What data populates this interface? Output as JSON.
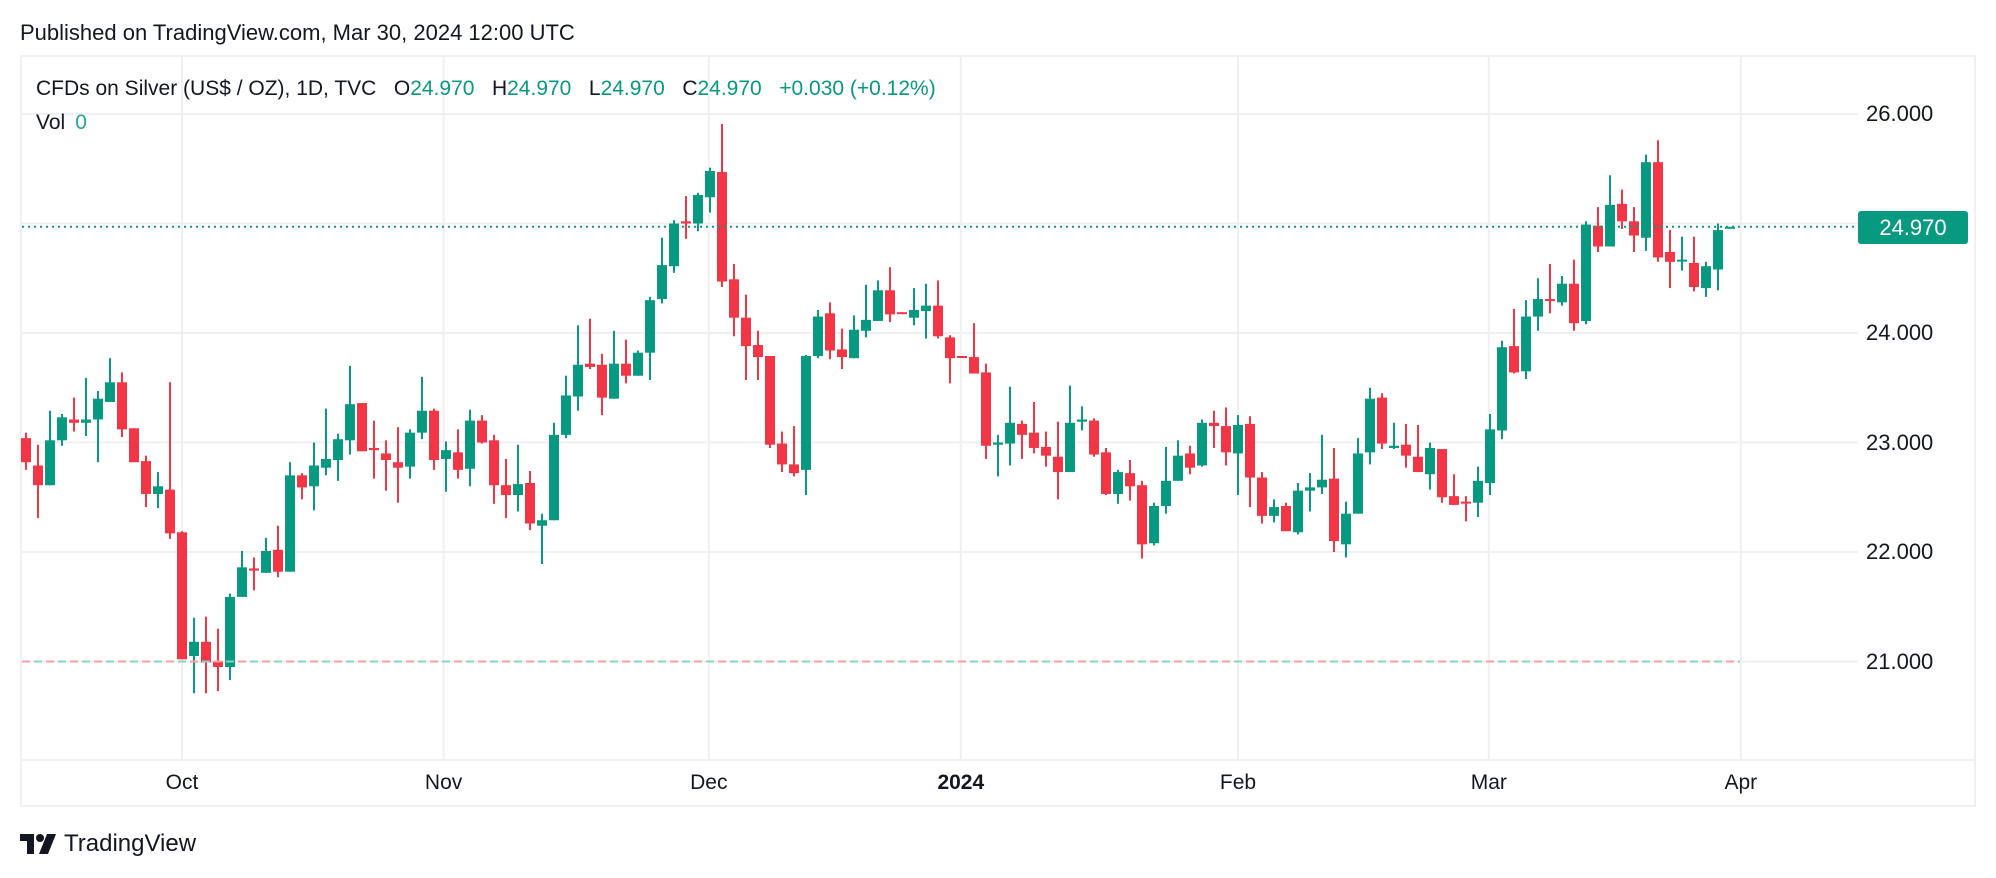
{
  "header": {
    "published": "Published on TradingView.com, Mar 30, 2024 12:00 UTC"
  },
  "legend": {
    "symbol": "CFDs on Silver (US$ / OZ), 1D, TVC",
    "open_label": "O",
    "open": "24.970",
    "high_label": "H",
    "high": "24.970",
    "low_label": "L",
    "low": "24.970",
    "close_label": "C",
    "close": "24.970",
    "change": "+0.030",
    "change_pct": "(+0.12%)",
    "vol_label": "Vol",
    "vol": "0"
  },
  "footer": {
    "brand": "TradingView"
  },
  "colors": {
    "up": "#089981",
    "down": "#F23645",
    "grid": "#f0f0f3"
  },
  "chart_data": {
    "type": "candlestick",
    "price_axis_ticks": [
      "26.000",
      "25.000",
      "24.000",
      "23.000",
      "22.000",
      "21.000"
    ],
    "visible_price_labels": [
      "26.000",
      "24.000",
      "23.000",
      "22.000",
      "21.000"
    ],
    "ylim": [
      20.35,
      26.25
    ],
    "time_axis_ticks": [
      {
        "label": "Oct",
        "index": 13.0,
        "bold": false
      },
      {
        "label": "Nov",
        "index": 34.8,
        "bold": false
      },
      {
        "label": "Dec",
        "index": 56.9,
        "bold": false
      },
      {
        "label": "2024",
        "index": 77.9,
        "bold": true
      },
      {
        "label": "Feb",
        "index": 101.0,
        "bold": false
      },
      {
        "label": "Mar",
        "index": 121.9,
        "bold": false
      },
      {
        "label": "Apr",
        "index": 142.9,
        "bold": false
      }
    ],
    "last_price": "24.970",
    "last_price_value": 24.97,
    "dashed_line_value": 21.0,
    "candles_ohlc": [
      [
        23.04,
        23.09,
        22.75,
        22.82
      ],
      [
        22.79,
        22.98,
        22.31,
        22.61
      ],
      [
        22.61,
        23.29,
        22.61,
        23.02
      ],
      [
        23.02,
        23.26,
        22.97,
        23.23
      ],
      [
        23.21,
        23.41,
        23.1,
        23.18
      ],
      [
        23.18,
        23.59,
        23.06,
        23.21
      ],
      [
        23.21,
        23.47,
        22.82,
        23.4
      ],
      [
        23.37,
        23.77,
        23.37,
        23.55
      ],
      [
        23.55,
        23.64,
        23.05,
        23.12
      ],
      [
        23.13,
        23.13,
        22.82,
        22.82
      ],
      [
        22.83,
        22.88,
        22.41,
        22.53
      ],
      [
        22.53,
        22.73,
        22.4,
        22.6
      ],
      [
        22.57,
        23.55,
        22.12,
        22.17
      ],
      [
        22.18,
        22.19,
        21.02,
        21.02
      ],
      [
        21.05,
        21.4,
        20.71,
        21.18
      ],
      [
        21.18,
        21.41,
        20.71,
        20.99
      ],
      [
        21.0,
        21.3,
        20.73,
        20.95
      ],
      [
        20.95,
        21.62,
        20.83,
        21.59
      ],
      [
        21.59,
        22.01,
        21.59,
        21.86
      ],
      [
        21.85,
        21.95,
        21.65,
        21.83
      ],
      [
        21.81,
        22.13,
        21.81,
        22.01
      ],
      [
        22.02,
        22.24,
        21.77,
        21.82
      ],
      [
        21.82,
        22.82,
        21.82,
        22.7
      ],
      [
        22.7,
        22.72,
        22.48,
        22.59
      ],
      [
        22.6,
        23.0,
        22.38,
        22.79
      ],
      [
        22.77,
        23.31,
        22.7,
        22.85
      ],
      [
        22.84,
        23.08,
        22.65,
        23.03
      ],
      [
        23.02,
        23.7,
        22.89,
        23.35
      ],
      [
        23.36,
        23.36,
        22.92,
        22.92
      ],
      [
        22.95,
        23.2,
        22.67,
        22.93
      ],
      [
        22.9,
        23.02,
        22.56,
        22.84
      ],
      [
        22.82,
        23.14,
        22.45,
        22.77
      ],
      [
        22.78,
        23.12,
        22.67,
        23.09
      ],
      [
        23.09,
        23.6,
        23.03,
        23.29
      ],
      [
        23.29,
        23.31,
        22.75,
        22.84
      ],
      [
        22.85,
        23.01,
        22.55,
        22.93
      ],
      [
        22.91,
        23.12,
        22.67,
        22.75
      ],
      [
        22.76,
        23.3,
        22.6,
        23.2
      ],
      [
        23.2,
        23.25,
        22.99,
        23.0
      ],
      [
        23.02,
        23.07,
        22.44,
        22.61
      ],
      [
        22.61,
        22.85,
        22.31,
        22.52
      ],
      [
        22.52,
        22.98,
        22.37,
        22.62
      ],
      [
        22.63,
        22.74,
        22.2,
        22.26
      ],
      [
        22.24,
        22.35,
        21.89,
        22.29
      ],
      [
        22.29,
        23.18,
        22.29,
        23.07
      ],
      [
        23.07,
        23.61,
        23.04,
        23.43
      ],
      [
        23.42,
        24.07,
        23.29,
        23.71
      ],
      [
        23.72,
        24.13,
        23.67,
        23.69
      ],
      [
        23.71,
        23.81,
        23.25,
        23.41
      ],
      [
        23.4,
        24.02,
        23.4,
        23.72
      ],
      [
        23.72,
        23.94,
        23.54,
        23.61
      ],
      [
        23.61,
        23.84,
        23.61,
        23.82
      ],
      [
        23.82,
        24.33,
        23.57,
        24.3
      ],
      [
        24.31,
        24.87,
        24.27,
        24.62
      ],
      [
        24.61,
        25.03,
        24.55,
        25.0
      ],
      [
        25.02,
        25.25,
        24.86,
        25.0
      ],
      [
        25.0,
        25.28,
        24.93,
        25.26
      ],
      [
        25.24,
        25.51,
        25.1,
        25.48
      ],
      [
        25.47,
        25.91,
        24.42,
        24.47
      ],
      [
        24.49,
        24.63,
        23.97,
        24.14
      ],
      [
        24.14,
        24.35,
        23.57,
        23.88
      ],
      [
        23.89,
        24.02,
        23.57,
        23.78
      ],
      [
        23.79,
        23.79,
        22.95,
        22.98
      ],
      [
        22.99,
        23.1,
        22.73,
        22.8
      ],
      [
        22.8,
        23.15,
        22.69,
        22.72
      ],
      [
        22.75,
        23.8,
        22.52,
        23.79
      ],
      [
        23.79,
        24.21,
        23.77,
        24.15
      ],
      [
        24.18,
        24.28,
        23.76,
        23.84
      ],
      [
        23.85,
        24.04,
        23.67,
        23.78
      ],
      [
        23.77,
        24.16,
        23.77,
        24.03
      ],
      [
        24.02,
        24.44,
        23.96,
        24.12
      ],
      [
        24.11,
        24.48,
        24.11,
        24.39
      ],
      [
        24.39,
        24.6,
        24.1,
        24.17
      ],
      [
        24.19,
        24.19,
        24.18,
        24.18
      ],
      [
        24.14,
        24.41,
        24.07,
        24.21
      ],
      [
        24.2,
        24.45,
        23.95,
        24.25
      ],
      [
        24.25,
        24.48,
        23.95,
        23.97
      ],
      [
        23.96,
        23.98,
        23.54,
        23.77
      ],
      [
        23.79,
        23.79,
        23.78,
        23.78
      ],
      [
        23.78,
        24.09,
        23.63,
        23.63
      ],
      [
        23.64,
        23.72,
        22.85,
        22.97
      ],
      [
        22.98,
        23.07,
        22.69,
        23.0
      ],
      [
        22.99,
        23.51,
        22.79,
        23.18
      ],
      [
        23.17,
        23.2,
        22.85,
        23.07
      ],
      [
        23.09,
        23.37,
        22.9,
        22.95
      ],
      [
        22.96,
        23.1,
        22.78,
        22.88
      ],
      [
        22.87,
        23.19,
        22.48,
        22.73
      ],
      [
        22.73,
        23.52,
        22.73,
        23.18
      ],
      [
        23.19,
        23.33,
        23.11,
        23.21
      ],
      [
        23.2,
        23.22,
        22.87,
        22.89
      ],
      [
        22.91,
        22.95,
        22.52,
        22.53
      ],
      [
        22.53,
        22.75,
        22.44,
        22.73
      ],
      [
        22.72,
        22.84,
        22.47,
        22.6
      ],
      [
        22.61,
        22.65,
        21.94,
        22.07
      ],
      [
        22.08,
        22.45,
        22.06,
        22.42
      ],
      [
        22.42,
        22.96,
        22.35,
        22.65
      ],
      [
        22.65,
        23.02,
        22.65,
        22.88
      ],
      [
        22.9,
        22.97,
        22.71,
        22.77
      ],
      [
        22.79,
        23.21,
        22.78,
        23.18
      ],
      [
        23.18,
        23.29,
        22.95,
        23.15
      ],
      [
        23.15,
        23.32,
        22.79,
        22.91
      ],
      [
        22.9,
        23.25,
        22.52,
        23.16
      ],
      [
        23.17,
        23.24,
        22.41,
        22.68
      ],
      [
        22.68,
        22.73,
        22.26,
        22.33
      ],
      [
        22.33,
        22.48,
        22.27,
        22.41
      ],
      [
        22.42,
        22.45,
        22.19,
        22.19
      ],
      [
        22.18,
        22.63,
        22.16,
        22.56
      ],
      [
        22.56,
        22.72,
        22.37,
        22.59
      ],
      [
        22.59,
        23.07,
        22.53,
        22.66
      ],
      [
        22.67,
        22.95,
        22.0,
        22.1
      ],
      [
        22.07,
        22.46,
        21.95,
        22.35
      ],
      [
        22.35,
        23.04,
        22.35,
        22.9
      ],
      [
        22.91,
        23.5,
        22.8,
        23.4
      ],
      [
        23.41,
        23.45,
        22.94,
        22.99
      ],
      [
        22.95,
        23.18,
        22.94,
        22.97
      ],
      [
        22.98,
        23.17,
        22.77,
        22.88
      ],
      [
        22.87,
        23.16,
        22.73,
        22.73
      ],
      [
        22.71,
        23.0,
        22.57,
        22.95
      ],
      [
        22.94,
        22.94,
        22.45,
        22.5
      ],
      [
        22.51,
        22.71,
        22.43,
        22.43
      ],
      [
        22.46,
        22.51,
        22.28,
        22.45
      ],
      [
        22.45,
        22.78,
        22.32,
        22.65
      ],
      [
        22.63,
        23.26,
        22.52,
        23.12
      ],
      [
        23.11,
        23.93,
        23.03,
        23.87
      ],
      [
        23.88,
        24.22,
        23.63,
        23.64
      ],
      [
        23.65,
        24.3,
        23.58,
        24.15
      ],
      [
        24.15,
        24.5,
        24.02,
        24.31
      ],
      [
        24.31,
        24.63,
        24.18,
        24.3
      ],
      [
        24.28,
        24.52,
        24.25,
        24.45
      ],
      [
        24.45,
        24.67,
        24.02,
        24.09
      ],
      [
        24.11,
        25.02,
        24.08,
        24.99
      ],
      [
        24.98,
        25.15,
        24.74,
        24.79
      ],
      [
        24.79,
        25.44,
        24.79,
        25.17
      ],
      [
        25.18,
        25.31,
        24.95,
        25.02
      ],
      [
        25.02,
        25.15,
        24.74,
        24.89
      ],
      [
        24.87,
        25.63,
        24.75,
        25.56
      ],
      [
        25.56,
        25.76,
        24.65,
        24.69
      ],
      [
        24.74,
        24.94,
        24.41,
        24.65
      ],
      [
        24.66,
        24.88,
        24.57,
        24.67
      ],
      [
        24.64,
        24.88,
        24.38,
        24.42
      ],
      [
        24.41,
        24.65,
        24.33,
        24.61
      ],
      [
        24.58,
        25.0,
        24.39,
        24.94
      ],
      [
        24.97,
        24.97,
        24.97,
        24.97
      ]
    ]
  }
}
